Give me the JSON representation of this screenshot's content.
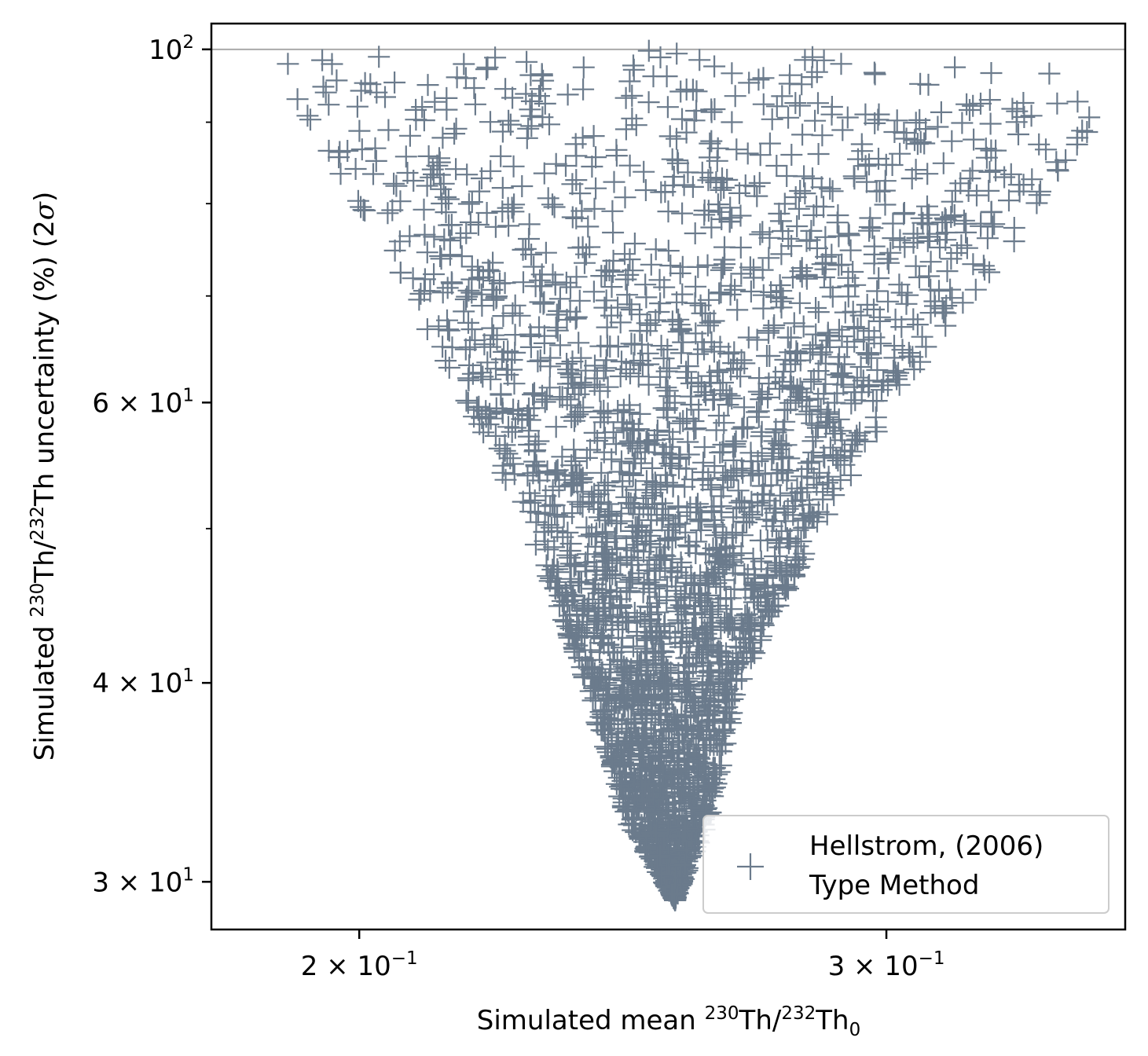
{
  "chart_data": {
    "type": "scatter",
    "x_scale": "log",
    "y_scale": "log",
    "xlim": [
      0.1785,
      0.3605
    ],
    "ylim": [
      28.0,
      103.8
    ],
    "grid": false,
    "reference_line": {
      "y": 100,
      "color": "#aaaaaa"
    },
    "marker": "plus",
    "series_color": "#6b7b8c",
    "legend_placement": "bottom-right",
    "legend": {
      "line1": "Hellstrom, (2006)",
      "line2": "Type Method"
    },
    "xlabel": {
      "prefix": "Simulated mean ",
      "sup1": "230",
      "mid1": "Th/",
      "sup2": "232",
      "mid2": "Th",
      "sub": "0"
    },
    "ylabel": {
      "prefix": "Simulated ",
      "sup1": "230",
      "mid1": "Th/",
      "sup2": "232",
      "suffix": "Th uncertainty (%) (2",
      "sigma": "σ",
      "close": ")"
    },
    "x_ticks": [
      {
        "value": 0.2,
        "mant": "2",
        "base": "10",
        "exp": "−1"
      },
      {
        "value": 0.3,
        "mant": "3",
        "base": "10",
        "exp": "−1"
      }
    ],
    "y_ticks": [
      {
        "value": 100,
        "mant": "",
        "base": "10",
        "exp": "2"
      },
      {
        "value": 60,
        "mant": "6",
        "base": "10",
        "exp": "1"
      },
      {
        "value": 40,
        "mant": "4",
        "base": "10",
        "exp": "1"
      },
      {
        "value": 30,
        "mant": "3",
        "base": "10",
        "exp": "1"
      }
    ],
    "y_minor_ticks": [
      90,
      80,
      70,
      50
    ],
    "points_envelope": {
      "n_points": 3000,
      "apex": {
        "x": 0.255,
        "y": 29.2
      },
      "top_left": {
        "x": 0.186,
        "y": 100
      },
      "top_right": {
        "x": 0.352,
        "y": 100
      },
      "right_edge": [
        {
          "y": 100,
          "x": 0.352
        },
        {
          "y": 85,
          "x": 0.35
        },
        {
          "y": 76,
          "x": 0.332
        },
        {
          "y": 62,
          "x": 0.305
        },
        {
          "y": 50,
          "x": 0.285
        },
        {
          "y": 40,
          "x": 0.268
        },
        {
          "y": 33,
          "x": 0.262
        },
        {
          "y": 29.2,
          "x": 0.255
        }
      ],
      "left_edge": [
        {
          "y": 100,
          "x": 0.186
        },
        {
          "y": 85,
          "x": 0.196
        },
        {
          "y": 76,
          "x": 0.203
        },
        {
          "y": 62,
          "x": 0.215
        },
        {
          "y": 50,
          "x": 0.228
        },
        {
          "y": 40,
          "x": 0.238
        },
        {
          "y": 33,
          "x": 0.245
        },
        {
          "y": 29.2,
          "x": 0.255
        }
      ]
    }
  }
}
